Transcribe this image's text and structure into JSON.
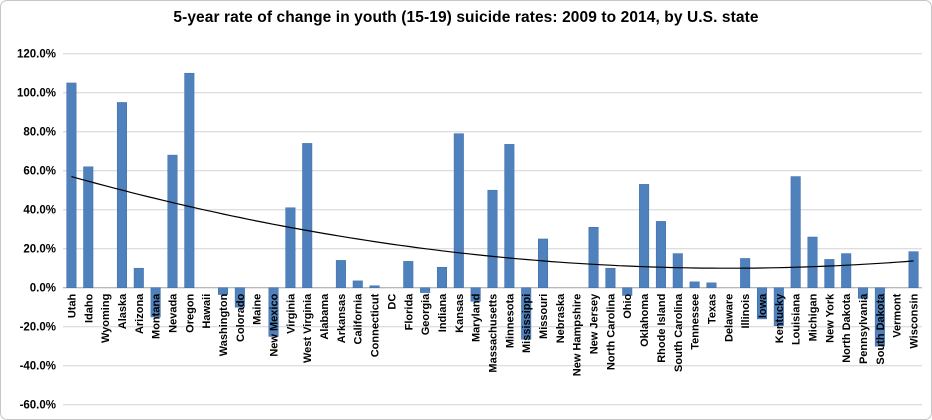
{
  "title": "5-year rate of change in youth (15-19) suicide rates: 2009 to 2014, by U.S. state",
  "chart_data": {
    "type": "bar",
    "title": "5-year rate of change in youth (15-19) suicide rates: 2009 to 2014, by U.S. state",
    "xlabel": "",
    "ylabel": "",
    "ylim": [
      -60,
      120
    ],
    "ytick_step": 20,
    "ytick_format": "0.0%",
    "grid": true,
    "legend_position": "none",
    "bar_color": "#4F81BD",
    "bar_edge_color": "#3E6AA8",
    "grid_color": "#D3D3D3",
    "axis_color": "#A0A0A0",
    "trend_color": "#000000",
    "categories": [
      "Utah",
      "Idaho",
      "Wyoming",
      "Alaska",
      "Arizona",
      "Montana",
      "Nevada",
      "Oregon",
      "Hawaii",
      "Washington",
      "Colorado",
      "Maine",
      "New Mexico",
      "Virginia",
      "West Virginia",
      "Alabama",
      "Arkansas",
      "California",
      "Connecticut",
      "DC",
      "Florida",
      "Georgia",
      "Indiana",
      "Kansas",
      "Maryland",
      "Massachusetts",
      "Minnesota",
      "Mississippi",
      "Missouri",
      "Nebraska",
      "New Hampshire",
      "New Jersey",
      "North Carolina",
      "Ohio",
      "Oklahoma",
      "Rhode Island",
      "South Carolina",
      "Tennessee",
      "Texas",
      "Delaware",
      "Illinois",
      "Iowa",
      "Kentucky",
      "Louisiana",
      "Michigan",
      "New York",
      "North Dakota",
      "Pennsylvania",
      "South Dakota",
      "Vermont",
      "Wisconsin"
    ],
    "values": [
      105,
      62,
      0,
      95,
      10,
      -15,
      68,
      110,
      0,
      -3.5,
      -10,
      0,
      -25,
      41,
      74,
      0,
      14,
      3.5,
      1,
      0,
      13.5,
      -2.5,
      10.5,
      79,
      -7,
      50,
      73.5,
      -26.5,
      25,
      0,
      0,
      31,
      10,
      -4,
      53,
      34,
      17.5,
      3,
      2.5,
      0,
      15,
      -16,
      -19.5,
      57,
      26,
      14.5,
      17.5,
      -5.5,
      -30,
      0,
      18.5
    ],
    "trendline": {
      "form": "quadratic",
      "a": 0.0309,
      "vertex_index": 39,
      "min_pct": 10,
      "start_pct": 57,
      "end_pct": 14.5
    }
  }
}
